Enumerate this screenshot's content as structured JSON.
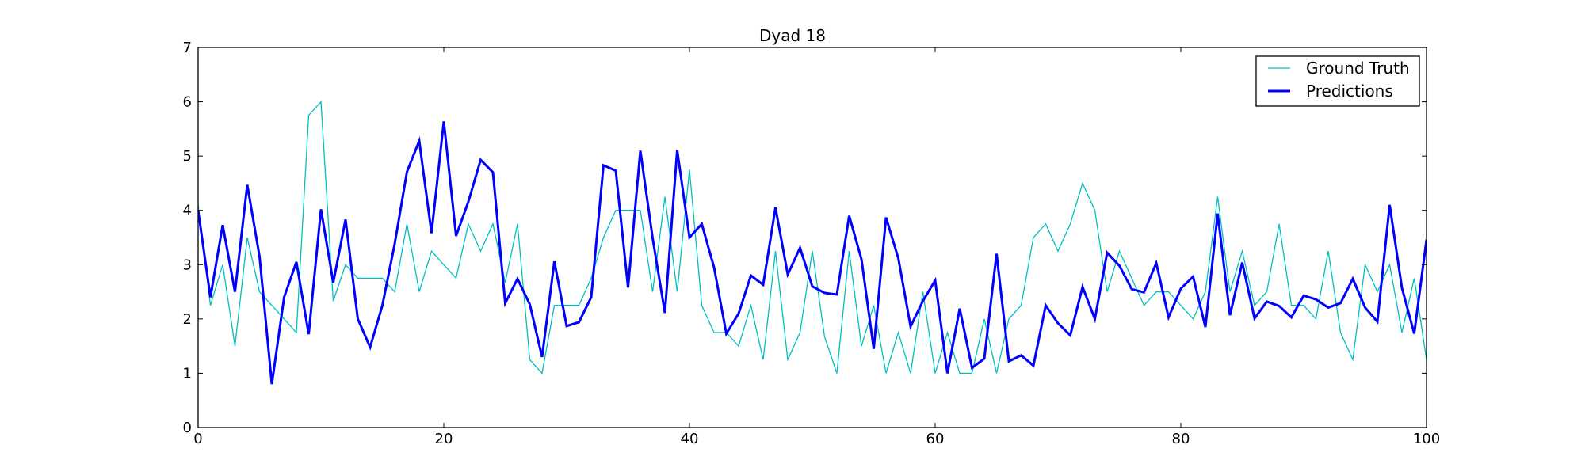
{
  "chart_data": {
    "type": "line",
    "title": "Dyad 18",
    "xlabel": "",
    "ylabel": "",
    "xlim": [
      0,
      100
    ],
    "ylim": [
      0,
      7
    ],
    "xticks": [
      0,
      20,
      40,
      60,
      80,
      100
    ],
    "yticks": [
      0,
      1,
      2,
      3,
      4,
      5,
      6,
      7
    ],
    "grid": false,
    "legend_position": "top-right",
    "x": [
      0,
      1,
      2,
      3,
      4,
      5,
      6,
      7,
      8,
      9,
      10,
      11,
      12,
      13,
      14,
      15,
      16,
      17,
      18,
      19,
      20,
      21,
      22,
      23,
      24,
      25,
      26,
      27,
      28,
      29,
      30,
      31,
      32,
      33,
      34,
      35,
      36,
      37,
      38,
      39,
      40,
      41,
      42,
      43,
      44,
      45,
      46,
      47,
      48,
      49,
      50,
      51,
      52,
      53,
      54,
      55,
      56,
      57,
      58,
      59,
      60,
      61,
      62,
      63,
      64,
      65,
      66,
      67,
      68,
      69,
      70,
      71,
      72,
      73,
      74,
      75,
      76,
      77,
      78,
      79,
      80,
      81,
      82,
      83,
      84,
      85,
      86,
      87,
      88,
      89,
      90,
      91,
      92,
      93,
      94,
      95,
      96,
      97,
      98,
      99,
      100
    ],
    "series": [
      {
        "name": "Ground Truth",
        "color": "#00bfbf",
        "line_width": 1.3,
        "values": [
          4.1,
          2.25,
          3.0,
          1.5,
          3.5,
          2.5,
          2.25,
          2.0,
          1.75,
          5.75,
          6.0,
          2.33,
          3.0,
          2.75,
          2.75,
          2.75,
          2.5,
          3.75,
          2.5,
          3.25,
          3.0,
          2.75,
          3.75,
          3.25,
          3.75,
          2.67,
          3.75,
          1.25,
          1.0,
          2.25,
          2.25,
          2.25,
          2.75,
          3.5,
          4.0,
          4.0,
          4.0,
          2.5,
          4.25,
          2.5,
          4.75,
          2.25,
          1.75,
          1.75,
          1.5,
          2.25,
          1.25,
          3.25,
          1.25,
          1.75,
          3.25,
          1.67,
          1.0,
          3.25,
          1.5,
          2.25,
          1.0,
          1.75,
          1.0,
          2.5,
          1.0,
          1.75,
          1.0,
          1.0,
          2.0,
          1.0,
          2.0,
          2.25,
          3.5,
          3.75,
          3.25,
          3.75,
          4.5,
          4.0,
          2.5,
          3.25,
          2.75,
          2.25,
          2.5,
          2.5,
          2.25,
          2.0,
          2.5,
          4.25,
          2.5,
          3.25,
          2.25,
          2.5,
          3.75,
          2.25,
          2.25,
          2.0,
          3.25,
          1.75,
          1.25,
          3.0,
          2.5,
          3.0,
          1.75,
          2.75,
          1.25
        ]
      },
      {
        "name": "Predictions",
        "color": "#0000ff",
        "line_width": 3,
        "values": [
          4.0,
          2.4,
          3.73,
          2.5,
          4.47,
          3.15,
          0.8,
          2.4,
          3.05,
          1.72,
          4.02,
          2.67,
          3.83,
          2.0,
          1.48,
          2.25,
          3.38,
          4.71,
          5.28,
          3.58,
          5.64,
          3.53,
          4.16,
          4.93,
          4.7,
          2.29,
          2.74,
          2.27,
          1.3,
          3.06,
          1.87,
          1.94,
          2.4,
          4.83,
          4.73,
          2.58,
          5.1,
          3.49,
          2.11,
          5.11,
          3.5,
          3.75,
          2.95,
          1.73,
          2.1,
          2.8,
          2.63,
          4.05,
          2.82,
          3.31,
          2.6,
          2.48,
          2.45,
          3.9,
          3.1,
          1.45,
          3.87,
          3.12,
          1.86,
          2.33,
          2.71,
          1.0,
          2.19,
          1.1,
          1.27,
          3.2,
          1.22,
          1.33,
          1.14,
          2.25,
          1.92,
          1.7,
          2.59,
          2.0,
          3.22,
          2.98,
          2.55,
          2.49,
          3.03,
          2.03,
          2.56,
          2.78,
          1.85,
          3.94,
          2.07,
          3.04,
          2.01,
          2.32,
          2.24,
          2.03,
          2.43,
          2.36,
          2.21,
          2.29,
          2.74,
          2.21,
          1.95,
          4.1,
          2.57,
          1.73,
          3.46
        ]
      }
    ]
  }
}
